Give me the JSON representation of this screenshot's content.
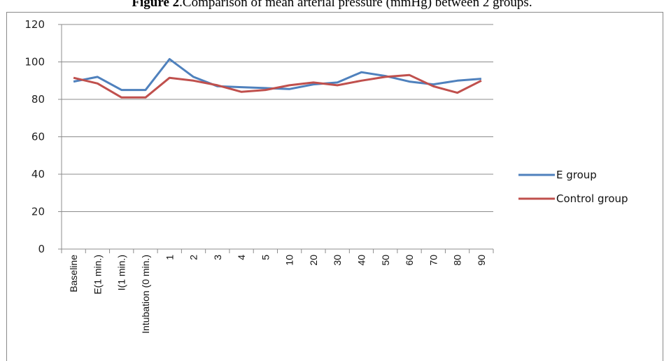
{
  "caption": {
    "prefix": "Figure 2",
    "text": ".Comparison of mean arterial pressure (mmHg) between 2 groups."
  },
  "chart_data": {
    "type": "line",
    "title": "",
    "xlabel": "",
    "ylabel": "",
    "ylim": [
      0,
      120
    ],
    "yticks": [
      0,
      20,
      40,
      60,
      80,
      100,
      120
    ],
    "grid": "horizontal",
    "legend_position": "right",
    "categories": [
      "Baseline",
      "E(1 min.)",
      "I(1 min.)",
      "Intubation (0 min.)",
      "1",
      "2",
      "3",
      "4",
      "5",
      "10",
      "20",
      "30",
      "40",
      "50",
      "60",
      "70",
      "80",
      "90"
    ],
    "series": [
      {
        "name": "E group",
        "color": "#4f81bd",
        "values": [
          89.5,
          92,
          85,
          85,
          101.5,
          92,
          87,
          86.5,
          86,
          85.5,
          88,
          89,
          94.5,
          92.5,
          89.5,
          88,
          90,
          91
        ]
      },
      {
        "name": "Control group",
        "color": "#c0504d",
        "values": [
          91.5,
          88.5,
          81,
          81,
          91.5,
          90,
          87.5,
          84,
          85,
          87.5,
          89,
          87.5,
          90,
          92,
          93,
          87,
          83.5,
          90
        ]
      }
    ]
  }
}
